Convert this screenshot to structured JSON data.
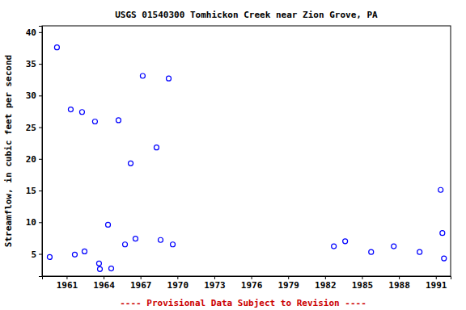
{
  "chart_data": {
    "type": "scatter",
    "title": "USGS 01540300 Tomhickon Creek near Zion Grove, PA",
    "y_label": "Streamflow, in cubic feet per second",
    "annotation": "---- Provisional Data Subject to Revision ----",
    "x": [
      1959.62,
      1960.21,
      1961.33,
      1961.66,
      1962.25,
      1962.45,
      1963.3,
      1963.63,
      1963.7,
      1964.36,
      1964.62,
      1965.21,
      1965.74,
      1966.2,
      1966.59,
      1967.18,
      1968.3,
      1968.63,
      1969.29,
      1969.62,
      1982.71,
      1983.63,
      1985.74,
      1987.58,
      1989.68,
      1991.39,
      1991.53,
      1991.66
    ],
    "values": [
      4.5,
      37.6,
      27.8,
      4.9,
      27.4,
      5.4,
      25.9,
      3.5,
      2.6,
      9.6,
      2.7,
      26.1,
      6.5,
      19.3,
      7.4,
      33.1,
      21.8,
      7.2,
      32.7,
      6.5,
      6.2,
      7.0,
      5.3,
      6.2,
      5.3,
      15.1,
      8.3,
      4.3
    ],
    "color": "#0000ff",
    "marker": "circle-open",
    "xlim": [
      1959,
      1992.2
    ],
    "xticks": [
      1961,
      1964,
      1967,
      1970,
      1973,
      1976,
      1979,
      1982,
      1985,
      1988,
      1991
    ],
    "ylim": [
      1.5,
      41
    ],
    "yticks": [
      5,
      10,
      15,
      20,
      25,
      30,
      35,
      40
    ],
    "grid": false
  }
}
